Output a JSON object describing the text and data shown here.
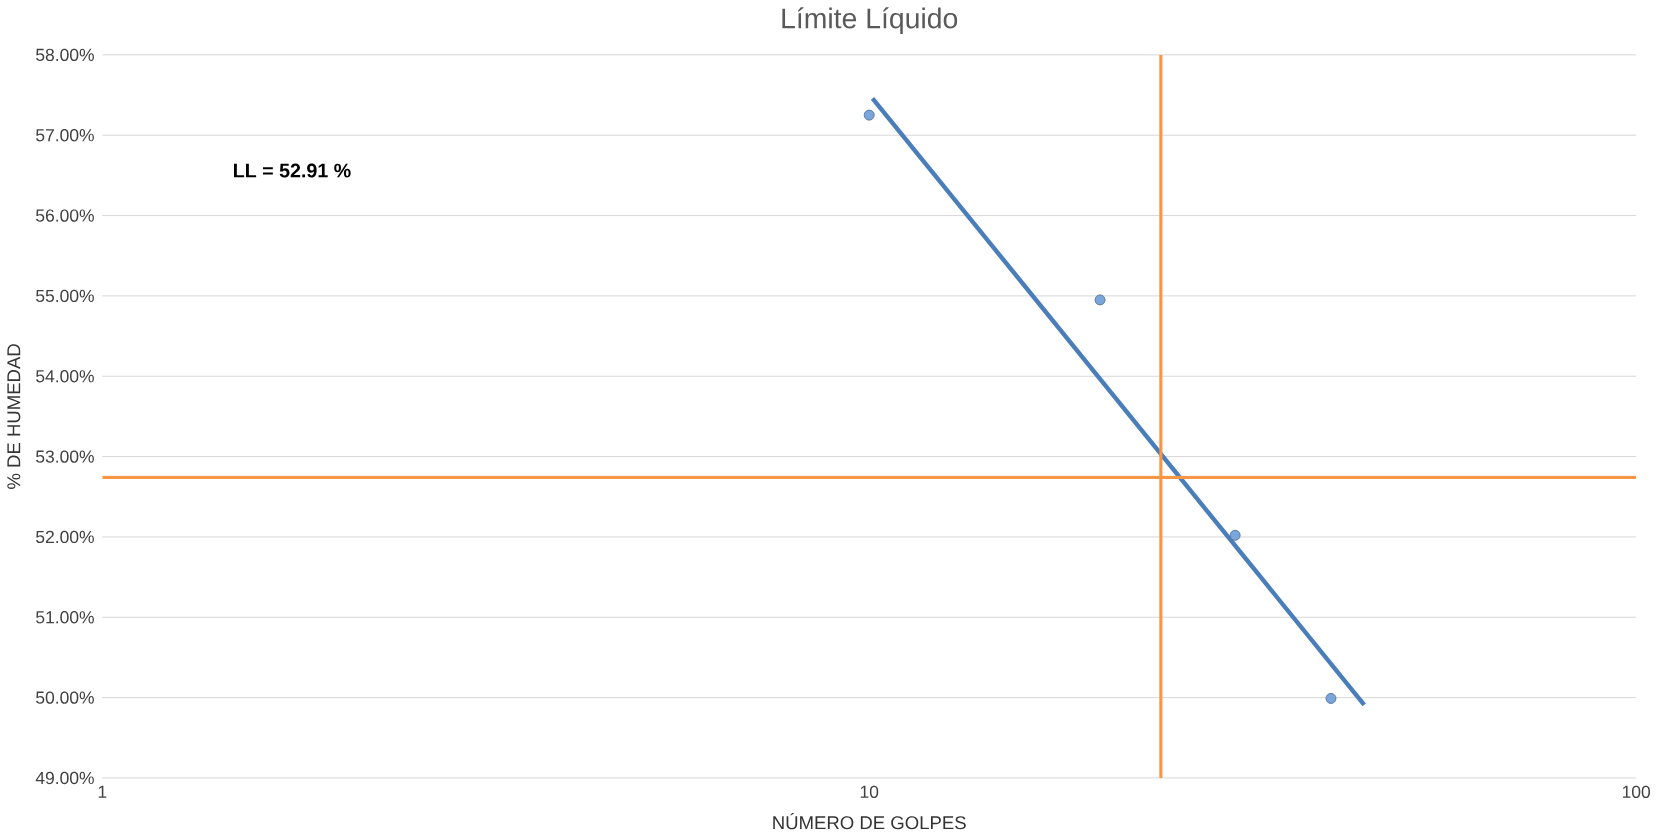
{
  "chart_data": {
    "type": "scatter",
    "title": "Límite Líquido",
    "xlabel": "NÚMERO DE GOLPES",
    "ylabel": "% DE HUMEDAD",
    "log": "x",
    "grid": "y",
    "marker": "circle",
    "xlim": [
      1,
      100
    ],
    "xticks": [
      1,
      10,
      100
    ],
    "ylim": [
      49,
      58
    ],
    "yticks": [
      {
        "value": 49,
        "label": "49.00%"
      },
      {
        "value": 50,
        "label": "50.00%"
      },
      {
        "value": 51,
        "label": "51.00%"
      },
      {
        "value": 52,
        "label": "52.00%"
      },
      {
        "value": 53,
        "label": "53.00%"
      },
      {
        "value": 54,
        "label": "54.00%"
      },
      {
        "value": 55,
        "label": "55.00%"
      },
      {
        "value": 56,
        "label": "56.00%"
      },
      {
        "value": 57,
        "label": "57.00%"
      },
      {
        "value": 58,
        "label": "58.00%"
      }
    ],
    "series": [
      {
        "color": "#7aa6dc",
        "x": [
          10,
          20,
          30,
          40
        ],
        "values": [
          57.25,
          54.95,
          52.02,
          49.99
        ]
      },
      {
        "type": "line",
        "color": "#4a7ebb",
        "marker": "none",
        "x": [
          10.1,
          44.2
        ],
        "values": [
          57.46,
          49.91
        ]
      }
    ],
    "ref_lines": [
      {
        "axis": "y",
        "value": 52.74,
        "color": "#f79646"
      },
      {
        "axis": "x",
        "value": 24,
        "color": "#f79646"
      }
    ],
    "annotations": [
      "LL = 52.91 %"
    ]
  }
}
